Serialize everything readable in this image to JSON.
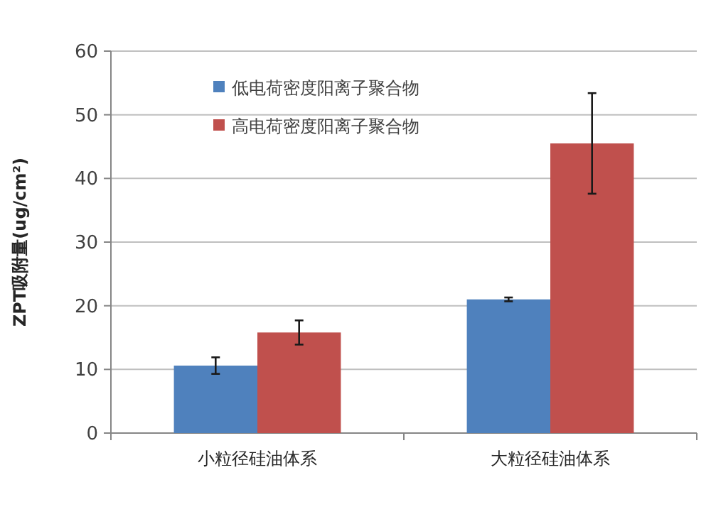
{
  "chart_data": {
    "type": "bar",
    "ylabel": "ZPT吸附量(ug/cm²)",
    "categories": [
      "小粒径硅油体系",
      "大粒径硅油体系"
    ],
    "series": [
      {
        "name": "低电荷密度阳离子聚合物",
        "color": "#4f81bd",
        "values": [
          10.6,
          21.0
        ],
        "errors": [
          1.3,
          0.3
        ]
      },
      {
        "name": "高电荷密度阳离子聚合物",
        "color": "#c0504d",
        "values": [
          15.8,
          45.5
        ],
        "errors": [
          1.9,
          7.9
        ]
      }
    ],
    "ylim": [
      0,
      60
    ],
    "yticks": [
      0,
      10,
      20,
      30,
      40,
      50,
      60
    ],
    "grid": "y",
    "legend": "top left"
  }
}
